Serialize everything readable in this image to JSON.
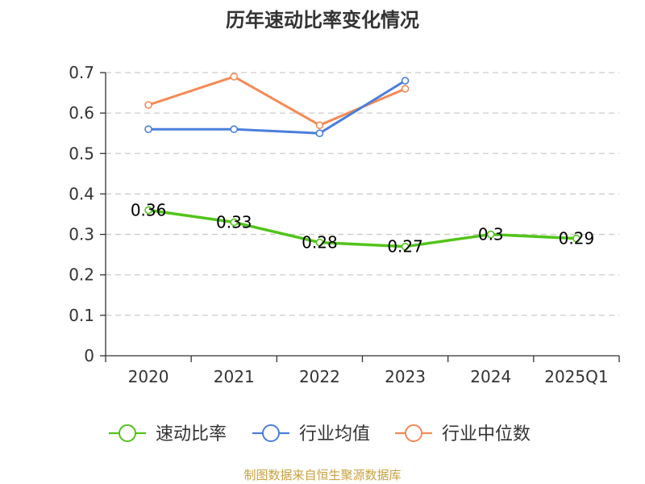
{
  "chart_data": {
    "type": "line",
    "title": "历年速动比率变化情况",
    "categories": [
      "2020",
      "2021",
      "2022",
      "2023",
      "2024",
      "2025Q1"
    ],
    "ylim": [
      0,
      0.7
    ],
    "yticks": [
      "0",
      "0.1",
      "0.2",
      "0.3",
      "0.4",
      "0.5",
      "0.6",
      "0.7"
    ],
    "grid": "horizontal-dashed",
    "legend_position": "bottom",
    "series": [
      {
        "name": "速动比率",
        "color": "#52c41a",
        "values": [
          0.36,
          0.33,
          0.28,
          0.27,
          0.3,
          0.29
        ],
        "labels": [
          "0.36",
          "0.33",
          "0.28",
          "0.27",
          "0.3",
          "0.29"
        ]
      },
      {
        "name": "行业均值",
        "color": "#4a7fdb",
        "values": [
          0.56,
          0.56,
          0.55,
          0.68,
          null,
          null
        ]
      },
      {
        "name": "行业中位数",
        "color": "#f58a55",
        "values": [
          0.62,
          0.69,
          0.57,
          0.66,
          null,
          null
        ]
      }
    ]
  },
  "source": "制图数据来自恒生聚源数据库"
}
